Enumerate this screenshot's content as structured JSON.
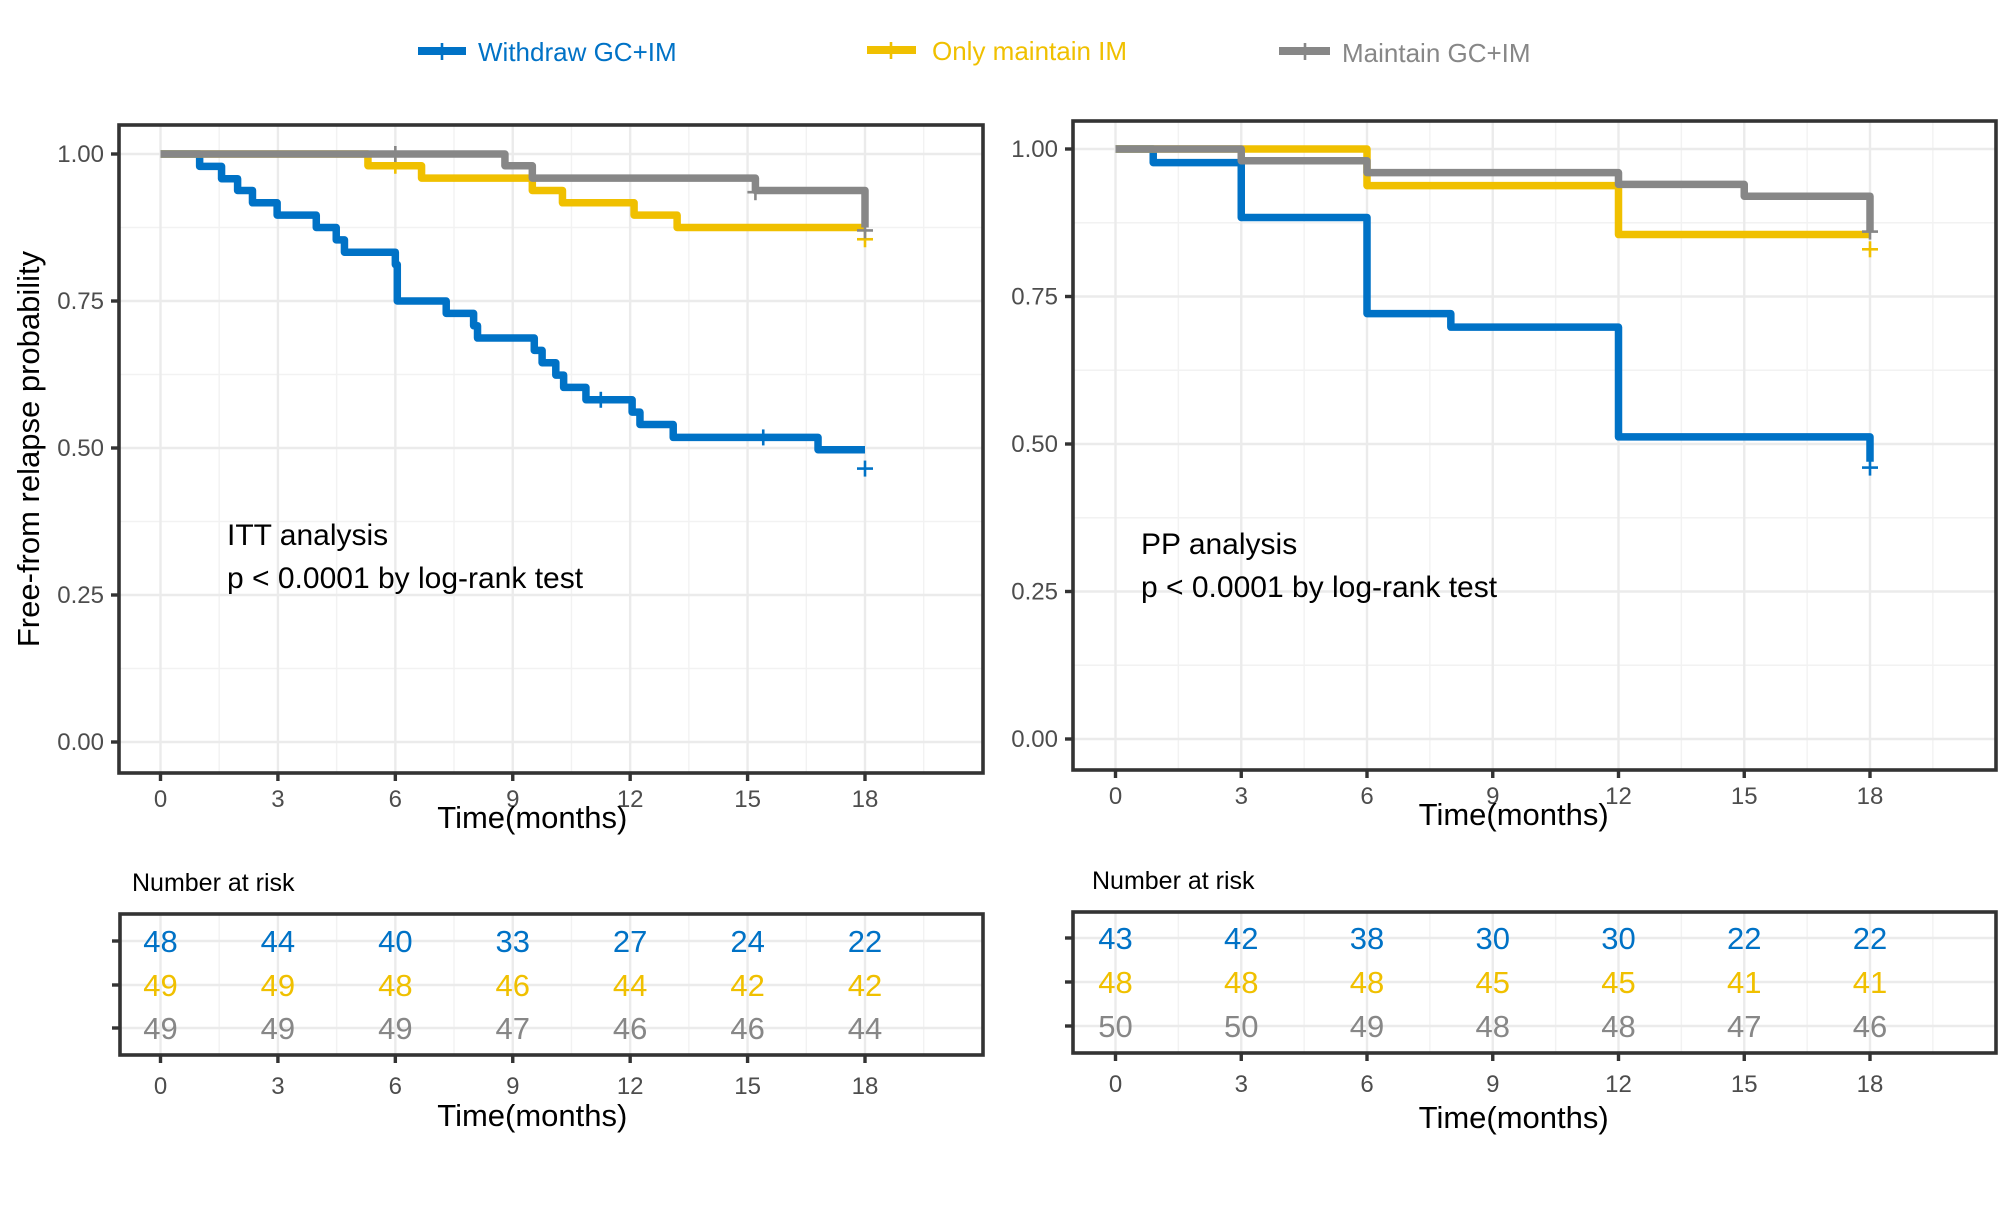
{
  "chart_data": {
    "type": "line",
    "legend": {
      "placement": "top-center",
      "entries": [
        {
          "name": "Withdraw GC+IM",
          "color": "#0072C6"
        },
        {
          "name": "Only maintain IM",
          "color": "#F0C000"
        },
        {
          "name": "Maintain GC+IM",
          "color": "#878787"
        }
      ]
    },
    "ylabel": "Free-from relapse probability",
    "panels": [
      {
        "id": "itt",
        "xlabel": "Time(months)",
        "ylabel": "Free-from relapse probability",
        "xlim": [
          -1.5,
          22
        ],
        "ylim": [
          -0.05,
          1.05
        ],
        "xticks": [
          0,
          3,
          6,
          9,
          12,
          15,
          18
        ],
        "yticks": [
          0.0,
          0.25,
          0.5,
          0.75,
          1.0
        ],
        "ytick_labels": [
          "0.00",
          "0.25",
          "0.50",
          "0.75",
          "1.00"
        ],
        "grid": true,
        "annotation": [
          "ITT analysis",
          "p < 0.0001 by log-rank test"
        ],
        "series": [
          {
            "name": "Withdraw GC+IM",
            "color": "#0072C6",
            "steps": [
              [
                0,
                1.0
              ],
              [
                1.0,
                0.979
              ],
              [
                1.56,
                0.958
              ],
              [
                1.97,
                0.938
              ],
              [
                2.35,
                0.917
              ],
              [
                2.98,
                0.896
              ],
              [
                3.98,
                0.875
              ],
              [
                4.49,
                0.854
              ],
              [
                4.7,
                0.833
              ],
              [
                6.0,
                0.812
              ],
              [
                6.05,
                0.75
              ],
              [
                7.3,
                0.729
              ],
              [
                8.0,
                0.708
              ],
              [
                8.1,
                0.687
              ],
              [
                9.55,
                0.666
              ],
              [
                9.75,
                0.645
              ],
              [
                10.1,
                0.624
              ],
              [
                10.3,
                0.603
              ],
              [
                10.87,
                0.582
              ],
              [
                12.05,
                0.561
              ],
              [
                12.25,
                0.54
              ],
              [
                13.1,
                0.518
              ],
              [
                16.8,
                0.497
              ],
              [
                18,
                0.497
              ]
            ],
            "censored": [
              [
                11.25,
                0.582
              ],
              [
                15.4,
                0.518
              ],
              [
                18,
                0.465
              ]
            ]
          },
          {
            "name": "Only maintain IM",
            "color": "#F0C000",
            "steps": [
              [
                0,
                1.0
              ],
              [
                5.3,
                0.98
              ],
              [
                6.67,
                0.959
              ],
              [
                9.5,
                0.938
              ],
              [
                10.27,
                0.917
              ],
              [
                12.1,
                0.896
              ],
              [
                13.2,
                0.875
              ],
              [
                18,
                0.875
              ]
            ],
            "censored": [
              [
                6.0,
                0.98
              ],
              [
                18,
                0.855
              ]
            ]
          },
          {
            "name": "Maintain GC+IM",
            "color": "#878787",
            "steps": [
              [
                0,
                1.0
              ],
              [
                8.8,
                0.98
              ],
              [
                9.5,
                0.959
              ],
              [
                15.2,
                0.938
              ],
              [
                18,
                0.938
              ],
              [
                18,
                0.875
              ]
            ],
            "censored": [
              [
                6.0,
                1.0
              ],
              [
                15.2,
                0.935
              ],
              [
                18,
                0.87
              ]
            ]
          }
        ],
        "risk_table": {
          "title": "Number at risk",
          "xlabel": "Time(months)",
          "times": [
            0,
            3,
            6,
            9,
            12,
            15,
            18
          ],
          "rows": [
            {
              "name": "Withdraw GC+IM",
              "color": "#0072C6",
              "values": [
                48,
                44,
                40,
                33,
                27,
                24,
                22
              ]
            },
            {
              "name": "Only maintain IM",
              "color": "#F0C000",
              "values": [
                49,
                49,
                48,
                46,
                44,
                42,
                42
              ]
            },
            {
              "name": "Maintain GC+IM",
              "color": "#878787",
              "values": [
                49,
                49,
                49,
                47,
                46,
                46,
                44
              ]
            }
          ]
        }
      },
      {
        "id": "pp",
        "xlabel": "Time(months)",
        "ylabel": "",
        "xlim": [
          -1.5,
          22
        ],
        "ylim": [
          -0.05,
          1.05
        ],
        "xticks": [
          0,
          3,
          6,
          9,
          12,
          15,
          18
        ],
        "yticks": [
          0.0,
          0.25,
          0.5,
          0.75,
          1.0
        ],
        "ytick_labels": [
          "0.00",
          "0.25",
          "0.50",
          "0.75",
          "1.00"
        ],
        "grid": true,
        "annotation": [
          "PP analysis",
          "p < 0.0001 by log-rank test"
        ],
        "series": [
          {
            "name": "Withdraw GC+IM",
            "color": "#0072C6",
            "steps": [
              [
                0,
                1.0
              ],
              [
                0.9,
                0.977
              ],
              [
                3.0,
                0.884
              ],
              [
                6.0,
                0.721
              ],
              [
                8.0,
                0.698
              ],
              [
                12.0,
                0.512
              ],
              [
                18,
                0.512
              ],
              [
                18,
                0.47
              ]
            ],
            "censored": [
              [
                18,
                0.46
              ]
            ]
          },
          {
            "name": "Only maintain IM",
            "color": "#F0C000",
            "steps": [
              [
                0,
                1.0
              ],
              [
                6.0,
                0.938
              ],
              [
                12.0,
                0.855
              ],
              [
                18,
                0.855
              ]
            ],
            "censored": [
              [
                18,
                0.83
              ]
            ]
          },
          {
            "name": "Maintain GC+IM",
            "color": "#878787",
            "steps": [
              [
                0,
                1.0
              ],
              [
                3.0,
                0.98
              ],
              [
                6.0,
                0.96
              ],
              [
                12.0,
                0.94
              ],
              [
                15.0,
                0.92
              ],
              [
                18,
                0.92
              ],
              [
                18,
                0.86
              ]
            ],
            "censored": [
              [
                18,
                0.86
              ]
            ]
          }
        ],
        "risk_table": {
          "title": "Number at risk",
          "xlabel": "Time(months)",
          "times": [
            0,
            3,
            6,
            9,
            12,
            15,
            18
          ],
          "rows": [
            {
              "name": "Withdraw GC+IM",
              "color": "#0072C6",
              "values": [
                43,
                42,
                38,
                30,
                30,
                22,
                22
              ]
            },
            {
              "name": "Only maintain IM",
              "color": "#F0C000",
              "values": [
                48,
                48,
                48,
                45,
                45,
                41,
                41
              ]
            },
            {
              "name": "Maintain GC+IM",
              "color": "#878787",
              "values": [
                50,
                50,
                49,
                48,
                48,
                47,
                46
              ]
            }
          ]
        }
      }
    ]
  }
}
